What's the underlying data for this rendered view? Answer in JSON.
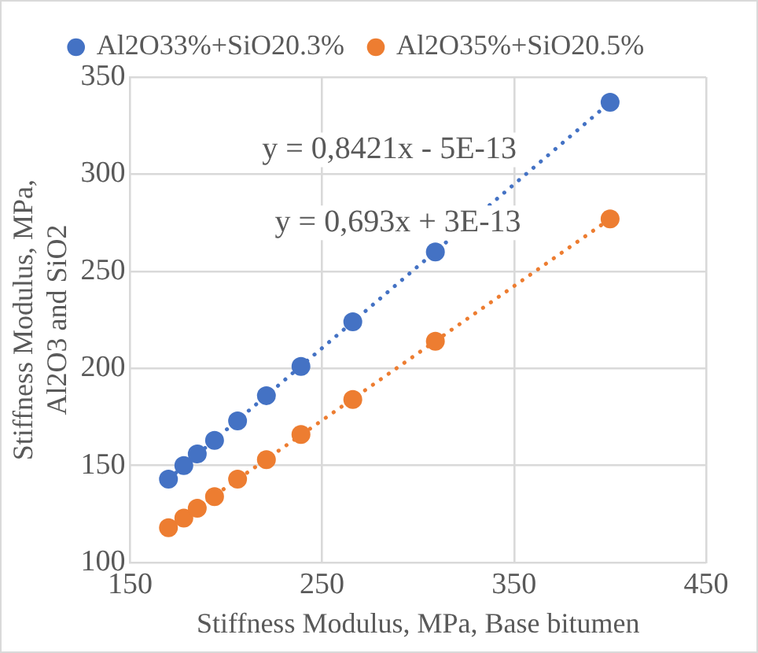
{
  "chart_data": {
    "type": "scatter",
    "xlabel": "Stiffness Modulus, MPa, Base bitumen",
    "ylabel": "Stiffness Modulus, MPa, Al2O3 and SiO2",
    "series": [
      {
        "name": "Al2O33%+SiO20.3%",
        "color": "#4472c4",
        "x": [
          170,
          178,
          185,
          194,
          206,
          221,
          239,
          266,
          309,
          400
        ],
        "values": [
          143,
          150,
          156,
          163,
          173,
          186,
          201,
          224,
          260,
          337
        ]
      },
      {
        "name": "Al2O35%+SiO20.5%",
        "color": "#ed7d31",
        "x": [
          170,
          178,
          185,
          194,
          206,
          221,
          239,
          266,
          309,
          400
        ],
        "values": [
          118,
          123,
          128,
          134,
          143,
          153,
          166,
          184,
          214,
          277
        ]
      },
      {
        "type": "line",
        "color": "#4472c4",
        "x": [
          170,
          400
        ],
        "values": [
          143,
          337
        ],
        "marker": "none",
        "line_style": "dotted"
      },
      {
        "type": "line",
        "color": "#ed7d31",
        "x": [
          170,
          400
        ],
        "values": [
          118,
          277
        ],
        "marker": "none",
        "line_style": "dotted"
      }
    ],
    "marker": "circle",
    "xlim": [
      150,
      450
    ],
    "xticks": [
      150,
      250,
      350,
      450
    ],
    "ylim": [
      100,
      350
    ],
    "yticks": [
      100,
      150,
      200,
      250,
      300,
      350
    ],
    "grid": true,
    "legend": "top",
    "annotations": [
      "y = 0,8421x - 5E-13",
      "y = 0,693x + 3E-13"
    ]
  }
}
